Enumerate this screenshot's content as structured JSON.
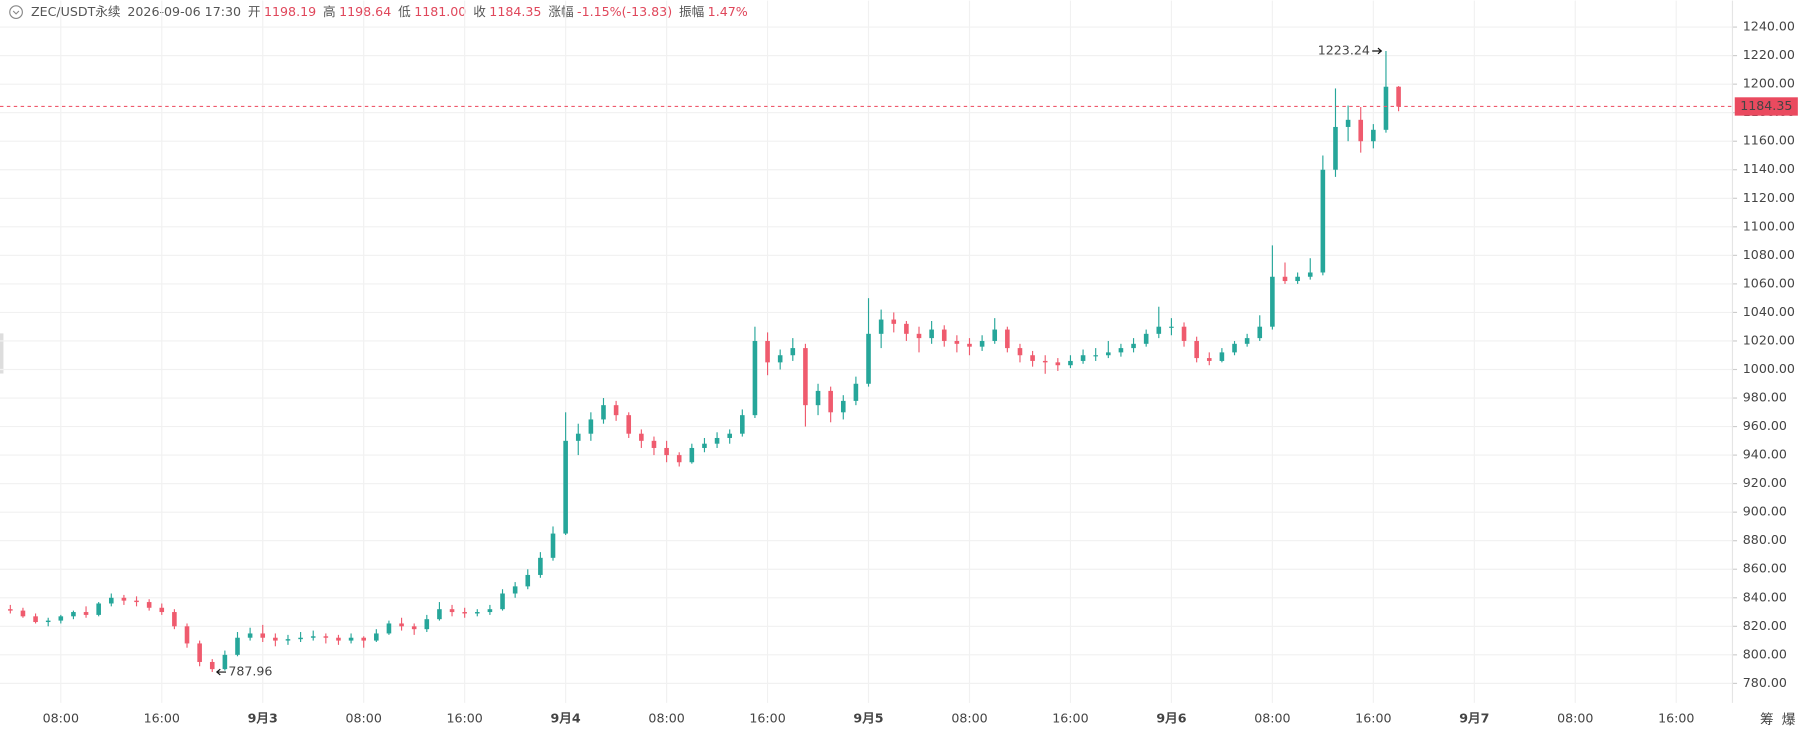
{
  "chart_data": {
    "type": "candlestick",
    "header": {
      "symbol": "ZEC/USDT永续",
      "time": "2026-09-06 17:30",
      "fields": [
        {
          "label": "开",
          "value": "1198.19"
        },
        {
          "label": "高",
          "value": "1198.64"
        },
        {
          "label": "低",
          "value": "1181.00"
        },
        {
          "label": "收",
          "value": "1184.35"
        },
        {
          "label": "涨幅",
          "value": "-1.15%(-13.83)"
        },
        {
          "label": "振幅",
          "value": "1.47%"
        }
      ]
    },
    "up_color": "#26a69a",
    "down_color": "#ef5b6e",
    "grid": true,
    "ylim": [
      770,
      1250
    ],
    "yticks": [
      {
        "value": 780,
        "label": "780.00"
      },
      {
        "value": 800,
        "label": "800.00"
      },
      {
        "value": 820,
        "label": "820.00"
      },
      {
        "value": 840,
        "label": "840.00"
      },
      {
        "value": 860,
        "label": "860.00"
      },
      {
        "value": 880,
        "label": "880.00"
      },
      {
        "value": 900,
        "label": "900.00"
      },
      {
        "value": 920,
        "label": "920.00"
      },
      {
        "value": 940,
        "label": "940.00"
      },
      {
        "value": 960,
        "label": "960.00"
      },
      {
        "value": 980,
        "label": "980.00"
      },
      {
        "value": 1000,
        "label": "1000.00"
      },
      {
        "value": 1020,
        "label": "1020.00"
      },
      {
        "value": 1040,
        "label": "1040.00"
      },
      {
        "value": 1060,
        "label": "1060.00"
      },
      {
        "value": 1080,
        "label": "1080.00"
      },
      {
        "value": 1100,
        "label": "1100.00"
      },
      {
        "value": 1120,
        "label": "1120.00"
      },
      {
        "value": 1140,
        "label": "1140.00"
      },
      {
        "value": 1160,
        "label": "1160.00"
      },
      {
        "value": 1180,
        "label": "1180.00"
      },
      {
        "value": 1200,
        "label": "1200.00"
      },
      {
        "value": 1220,
        "label": "1220.00"
      },
      {
        "value": 1240,
        "label": "1240.00"
      }
    ],
    "categories": [
      null,
      null,
      null,
      null,
      "08:00",
      null,
      null,
      null,
      null,
      null,
      null,
      null,
      "16:00",
      null,
      null,
      null,
      null,
      null,
      null,
      null,
      "9月3",
      null,
      null,
      null,
      null,
      null,
      null,
      null,
      "08:00",
      null,
      null,
      null,
      null,
      null,
      null,
      null,
      "16:00",
      null,
      null,
      null,
      null,
      null,
      null,
      null,
      "9月4",
      null,
      null,
      null,
      null,
      null,
      null,
      null,
      "08:00",
      null,
      null,
      null,
      null,
      null,
      null,
      null,
      "16:00",
      null,
      null,
      null,
      null,
      null,
      null,
      null,
      "9月5",
      null,
      null,
      null,
      null,
      null,
      null,
      null,
      "08:00",
      null,
      null,
      null,
      null,
      null,
      null,
      null,
      "16:00",
      null,
      null,
      null,
      null,
      null,
      null,
      null,
      "9月6",
      null,
      null,
      null,
      null,
      null,
      null,
      null,
      "08:00",
      null,
      null,
      null,
      null,
      null,
      null,
      null,
      "16:00",
      null,
      null,
      null,
      null,
      null,
      null,
      null,
      "9月7",
      null,
      null,
      null,
      null,
      null,
      null,
      null,
      "08:00",
      null,
      null,
      null,
      null,
      null,
      null,
      null,
      "16:00",
      null,
      null,
      null,
      null
    ],
    "ohlc": [
      [
        832,
        835,
        829,
        831
      ],
      [
        831,
        833,
        826,
        827
      ],
      [
        827,
        829,
        822,
        823
      ],
      [
        823,
        826,
        820,
        824
      ],
      [
        824,
        828,
        822,
        827
      ],
      [
        827,
        831,
        825,
        830
      ],
      [
        830,
        834,
        826,
        828
      ],
      [
        828,
        837,
        827,
        836
      ],
      [
        836,
        843,
        834,
        840
      ],
      [
        840,
        842,
        835,
        838
      ],
      [
        838,
        841,
        834,
        837
      ],
      [
        837,
        839,
        831,
        833
      ],
      [
        833,
        836,
        828,
        830
      ],
      [
        830,
        832,
        818,
        820
      ],
      [
        820,
        822,
        805,
        808
      ],
      [
        808,
        810,
        792,
        795
      ],
      [
        795,
        797,
        787.96,
        790
      ],
      [
        790,
        803,
        789,
        800
      ],
      [
        800,
        816,
        799,
        812
      ],
      [
        812,
        819,
        810,
        815
      ],
      [
        815,
        821,
        809,
        812
      ],
      [
        812,
        815,
        806,
        810
      ],
      [
        810,
        814,
        807,
        811
      ],
      [
        811,
        816,
        809,
        812
      ],
      [
        812,
        817,
        810,
        813
      ],
      [
        813,
        815,
        808,
        812
      ],
      [
        812,
        814,
        807,
        810
      ],
      [
        810,
        815,
        808,
        812
      ],
      [
        812,
        813,
        805,
        810
      ],
      [
        810,
        818,
        809,
        815
      ],
      [
        815,
        824,
        814,
        822
      ],
      [
        822,
        826,
        817,
        820
      ],
      [
        820,
        822,
        814,
        818
      ],
      [
        818,
        828,
        816,
        825
      ],
      [
        825,
        837,
        824,
        832
      ],
      [
        832,
        835,
        827,
        830
      ],
      [
        830,
        833,
        826,
        829
      ],
      [
        829,
        832,
        827,
        830
      ],
      [
        830,
        835,
        828,
        832
      ],
      [
        832,
        846,
        831,
        843
      ],
      [
        843,
        851,
        840,
        848
      ],
      [
        848,
        860,
        846,
        856
      ],
      [
        856,
        872,
        854,
        868
      ],
      [
        868,
        890,
        866,
        885
      ],
      [
        885,
        970,
        884,
        950
      ],
      [
        950,
        962,
        940,
        955
      ],
      [
        955,
        970,
        950,
        965
      ],
      [
        965,
        980,
        962,
        975
      ],
      [
        975,
        978,
        964,
        968
      ],
      [
        968,
        970,
        952,
        955
      ],
      [
        955,
        958,
        945,
        950
      ],
      [
        950,
        953,
        940,
        945
      ],
      [
        945,
        950,
        935,
        940
      ],
      [
        940,
        942,
        932,
        935
      ],
      [
        935,
        948,
        934,
        945
      ],
      [
        945,
        952,
        942,
        948
      ],
      [
        948,
        956,
        945,
        952
      ],
      [
        952,
        958,
        948,
        955
      ],
      [
        955,
        972,
        953,
        968
      ],
      [
        968,
        1030,
        966,
        1020
      ],
      [
        1020,
        1026,
        996,
        1005
      ],
      [
        1005,
        1014,
        1000,
        1010
      ],
      [
        1010,
        1022,
        1006,
        1015
      ],
      [
        1015,
        1018,
        960,
        975
      ],
      [
        975,
        990,
        968,
        985
      ],
      [
        985,
        988,
        963,
        970
      ],
      [
        970,
        982,
        965,
        978
      ],
      [
        978,
        995,
        975,
        990
      ],
      [
        990,
        1050,
        988,
        1025
      ],
      [
        1025,
        1042,
        1015,
        1035
      ],
      [
        1035,
        1040,
        1026,
        1032
      ],
      [
        1032,
        1034,
        1020,
        1025
      ],
      [
        1025,
        1030,
        1012,
        1022
      ],
      [
        1022,
        1034,
        1018,
        1028
      ],
      [
        1028,
        1031,
        1016,
        1020
      ],
      [
        1020,
        1024,
        1012,
        1018
      ],
      [
        1018,
        1022,
        1010,
        1016
      ],
      [
        1016,
        1024,
        1013,
        1020
      ],
      [
        1020,
        1036,
        1018,
        1028
      ],
      [
        1028,
        1030,
        1012,
        1015
      ],
      [
        1015,
        1018,
        1005,
        1010
      ],
      [
        1010,
        1013,
        1002,
        1006
      ],
      [
        1006,
        1010,
        997,
        1005
      ],
      [
        1005,
        1008,
        999,
        1003
      ],
      [
        1003,
        1010,
        1001,
        1006
      ],
      [
        1006,
        1014,
        1004,
        1010
      ],
      [
        1010,
        1015,
        1006,
        1010
      ],
      [
        1010,
        1020,
        1008,
        1012
      ],
      [
        1012,
        1018,
        1009,
        1015
      ],
      [
        1015,
        1022,
        1012,
        1018
      ],
      [
        1018,
        1028,
        1016,
        1025
      ],
      [
        1025,
        1044,
        1022,
        1030
      ],
      [
        1030,
        1036,
        1024,
        1030
      ],
      [
        1030,
        1033,
        1016,
        1020
      ],
      [
        1020,
        1023,
        1005,
        1008
      ],
      [
        1008,
        1012,
        1003,
        1006
      ],
      [
        1006,
        1015,
        1005,
        1012
      ],
      [
        1012,
        1020,
        1010,
        1018
      ],
      [
        1018,
        1025,
        1016,
        1022
      ],
      [
        1022,
        1038,
        1020,
        1030
      ],
      [
        1030,
        1087,
        1028,
        1065
      ],
      [
        1065,
        1075,
        1060,
        1062
      ],
      [
        1062,
        1068,
        1060,
        1065
      ],
      [
        1065,
        1078,
        1063,
        1068
      ],
      [
        1068,
        1150,
        1066,
        1140
      ],
      [
        1140,
        1197,
        1135,
        1170
      ],
      [
        1170,
        1185,
        1160,
        1175
      ],
      [
        1175,
        1184,
        1152,
        1160
      ],
      [
        1160,
        1172,
        1155,
        1168
      ],
      [
        1168,
        1223.24,
        1166,
        1198.19
      ],
      [
        1198.19,
        1198.64,
        1181,
        1184.35
      ],
      null,
      null,
      null,
      null,
      null,
      null,
      null,
      null,
      null,
      null,
      null,
      null,
      null,
      null,
      null,
      null,
      null,
      null,
      null,
      null,
      null,
      null,
      null,
      null,
      null,
      null
    ],
    "toolbar": [
      "筹",
      "爆"
    ]
  }
}
